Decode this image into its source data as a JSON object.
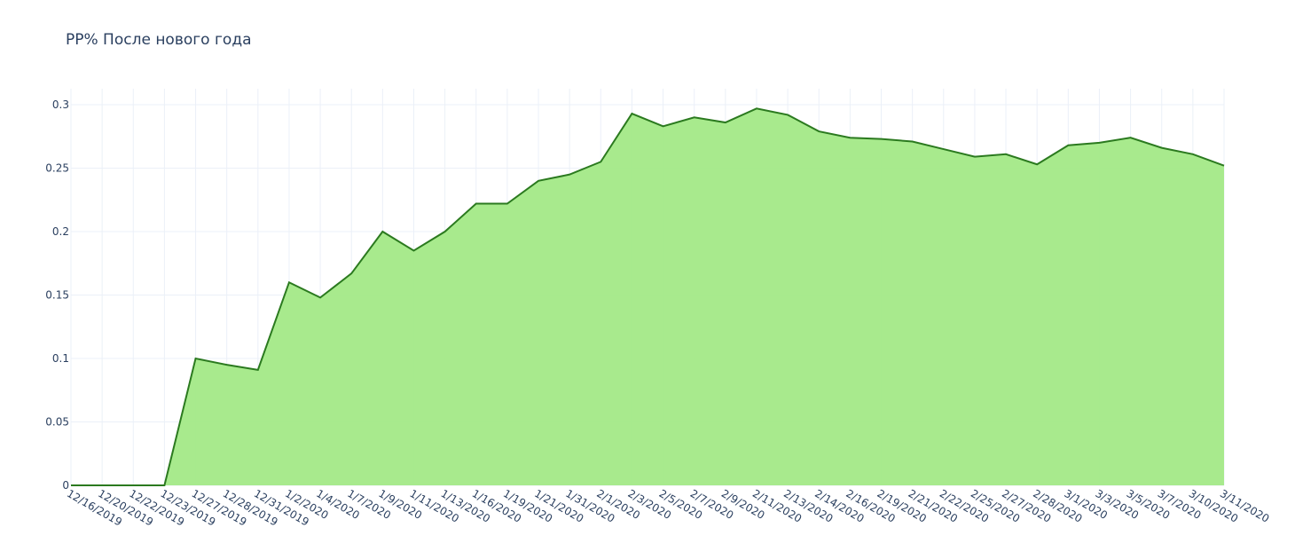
{
  "chart_data": {
    "type": "area",
    "title": "PP% После нового года",
    "categories": [
      "12/16/2019",
      "12/20/2019",
      "12/22/2019",
      "12/23/2019",
      "12/27/2019",
      "12/28/2019",
      "12/31/2019",
      "1/2/2020",
      "1/4/2020",
      "1/7/2020",
      "1/9/2020",
      "1/11/2020",
      "1/13/2020",
      "1/16/2020",
      "1/19/2020",
      "1/21/2020",
      "1/31/2020",
      "2/1/2020",
      "2/3/2020",
      "2/5/2020",
      "2/7/2020",
      "2/9/2020",
      "2/11/2020",
      "2/13/2020",
      "2/14/2020",
      "2/16/2020",
      "2/19/2020",
      "2/21/2020",
      "2/22/2020",
      "2/25/2020",
      "2/27/2020",
      "2/28/2020",
      "3/1/2020",
      "3/3/2020",
      "3/5/2020",
      "3/7/2020",
      "3/10/2020",
      "3/11/2020"
    ],
    "values": [
      0,
      0,
      0,
      0,
      0.1,
      0.095,
      0.091,
      0.16,
      0.148,
      0.167,
      0.2,
      0.185,
      0.2,
      0.222,
      0.222,
      0.24,
      0.245,
      0.255,
      0.293,
      0.283,
      0.29,
      0.286,
      0.297,
      0.292,
      0.279,
      0.274,
      0.273,
      0.271,
      0.265,
      0.259,
      0.261,
      0.253,
      0.268,
      0.27,
      0.274,
      0.266,
      0.261,
      0.252
    ],
    "color": "#2b7a1f",
    "fill_color": "#a3e987",
    "ylim": [
      0,
      0.3126
    ],
    "yticks": [
      0,
      0.05,
      0.1,
      0.15,
      0.2,
      0.25,
      0.3
    ],
    "grid": true
  }
}
